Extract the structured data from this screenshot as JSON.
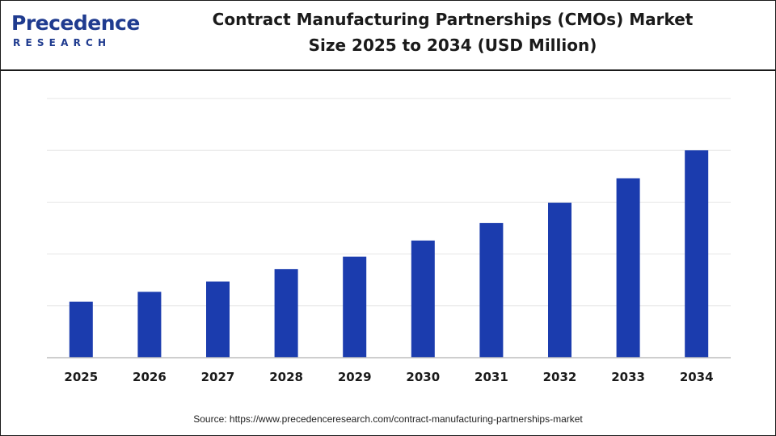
{
  "header": {
    "logo_main": "recedence",
    "logo_initial": "P",
    "logo_sub": "RESEARCH",
    "title_line1": "Contract Manufacturing Partnerships (CMOs) Market",
    "title_line2": "Size 2025 to 2034 (USD Million)"
  },
  "footer": {
    "source": "Source: https://www.precedenceresearch.com/contract-manufacturing-partnerships-market"
  },
  "colors": {
    "bar": "#1b3cae",
    "grid": "#e6e6e6",
    "axis": "#bdbdbd",
    "brand": "#1f3b8f"
  },
  "chart_data": {
    "type": "bar",
    "title": "Contract Manufacturing Partnerships (CMOs) Market Size 2025 to 2034 (USD Million)",
    "categories": [
      "2025",
      "2026",
      "2027",
      "2028",
      "2029",
      "2030",
      "2031",
      "2032",
      "2033",
      "2034"
    ],
    "values": [
      1080,
      1270,
      1470,
      1710,
      1950,
      2260,
      2600,
      2990,
      3460,
      4000
    ],
    "ylim": [
      0,
      5000
    ],
    "grid": true,
    "legend": "none",
    "xlabel": "",
    "ylabel": ""
  }
}
